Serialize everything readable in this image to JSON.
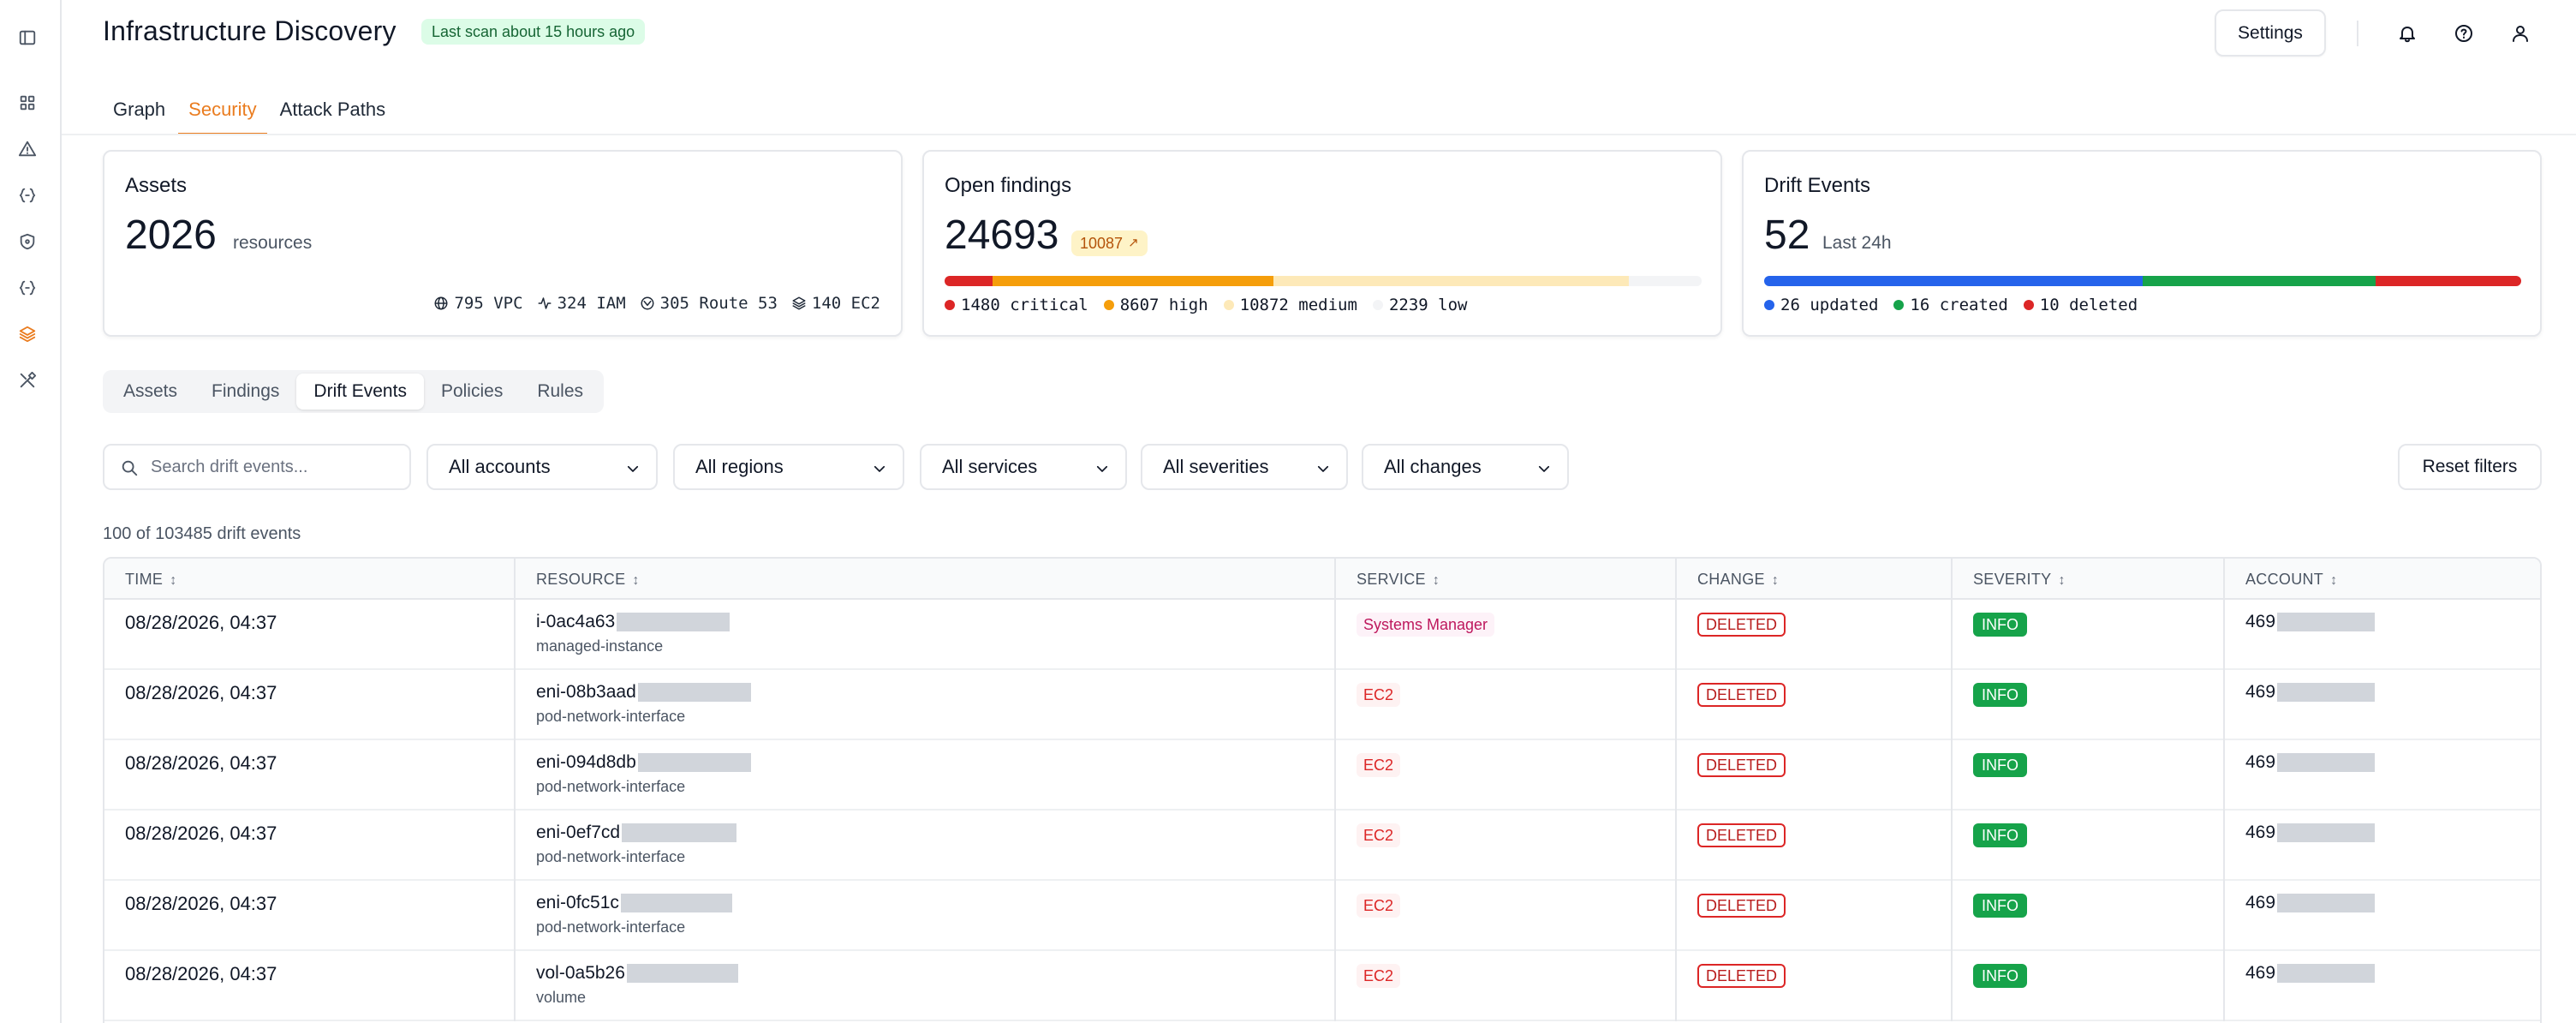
{
  "header": {
    "title": "Infrastructure Discovery",
    "scan_badge": "Last scan about 15 hours ago",
    "settings_label": "Settings"
  },
  "rail": {
    "icons": [
      "sidebar-toggle-icon",
      "dashboard-grid-icon",
      "alert-triangle-icon",
      "code-braces-icon",
      "shield-icon",
      "code-braces-icon",
      "layers-icon",
      "tools-icon"
    ],
    "active_index": 6
  },
  "top_tabs": [
    {
      "label": "Graph",
      "active": false
    },
    {
      "label": "Security",
      "active": true
    },
    {
      "label": "Attack Paths",
      "active": false
    }
  ],
  "cards": {
    "assets": {
      "title": "Assets",
      "value": "2026",
      "unit": "resources",
      "stats": [
        {
          "icon": "globe-icon",
          "text": "795 VPC"
        },
        {
          "icon": "activity-icon",
          "text": "324 IAM"
        },
        {
          "icon": "route-icon",
          "text": "305 Route 53"
        },
        {
          "icon": "layers-icon",
          "text": "140 EC2"
        }
      ]
    },
    "findings": {
      "title": "Open findings",
      "value": "24693",
      "delta": "10087",
      "segments": [
        {
          "label": "1480 critical",
          "value": 1480,
          "color": "#dc2626"
        },
        {
          "label": "8607 high",
          "value": 8607,
          "color": "#f59e0b"
        },
        {
          "label": "10872 medium",
          "value": 10872,
          "color": "#fde9b8"
        },
        {
          "label": "2239 low",
          "value": 2239,
          "color": "#f3f4f6"
        }
      ]
    },
    "drift": {
      "title": "Drift Events",
      "value": "52",
      "sub": "Last 24h",
      "segments": [
        {
          "label": "26 updated",
          "value": 26,
          "color": "#2563eb"
        },
        {
          "label": "16 created",
          "value": 16,
          "color": "#16a34a"
        },
        {
          "label": "10 deleted",
          "value": 10,
          "color": "#dc2626"
        }
      ]
    }
  },
  "sub_tabs": [
    {
      "label": "Assets",
      "active": false
    },
    {
      "label": "Findings",
      "active": false
    },
    {
      "label": "Drift Events",
      "active": true
    },
    {
      "label": "Policies",
      "active": false
    },
    {
      "label": "Rules",
      "active": false
    }
  ],
  "filters": {
    "search_placeholder": "Search drift events...",
    "accounts": "All accounts",
    "regions": "All regions",
    "services": "All services",
    "severities": "All severities",
    "changes": "All changes",
    "reset_label": "Reset filters"
  },
  "count_text": "100 of 103485 drift events",
  "table": {
    "columns": [
      "TIME",
      "RESOURCE",
      "SERVICE",
      "CHANGE",
      "SEVERITY",
      "ACCOUNT"
    ],
    "rows": [
      {
        "time": "08/28/2026, 04:37",
        "resource": "i-0ac4a63",
        "resource_type": "managed-instance",
        "service": "Systems Manager",
        "change": "DELETED",
        "severity": "INFO",
        "account": "469"
      },
      {
        "time": "08/28/2026, 04:37",
        "resource": "eni-08b3aad",
        "resource_type": "pod-network-interface",
        "service": "EC2",
        "change": "DELETED",
        "severity": "INFO",
        "account": "469"
      },
      {
        "time": "08/28/2026, 04:37",
        "resource": "eni-094d8db",
        "resource_type": "pod-network-interface",
        "service": "EC2",
        "change": "DELETED",
        "severity": "INFO",
        "account": "469"
      },
      {
        "time": "08/28/2026, 04:37",
        "resource": "eni-0ef7cd",
        "resource_type": "pod-network-interface",
        "service": "EC2",
        "change": "DELETED",
        "severity": "INFO",
        "account": "469"
      },
      {
        "time": "08/28/2026, 04:37",
        "resource": "eni-0fc51c",
        "resource_type": "pod-network-interface",
        "service": "EC2",
        "change": "DELETED",
        "severity": "INFO",
        "account": "469"
      },
      {
        "time": "08/28/2026, 04:37",
        "resource": "vol-0a5b26",
        "resource_type": "volume",
        "service": "EC2",
        "change": "DELETED",
        "severity": "INFO",
        "account": "469"
      }
    ]
  },
  "colors": {
    "accent": "#ea7c1f",
    "info_badge": "#16a34a",
    "deleted_badge": "#dc2626"
  }
}
